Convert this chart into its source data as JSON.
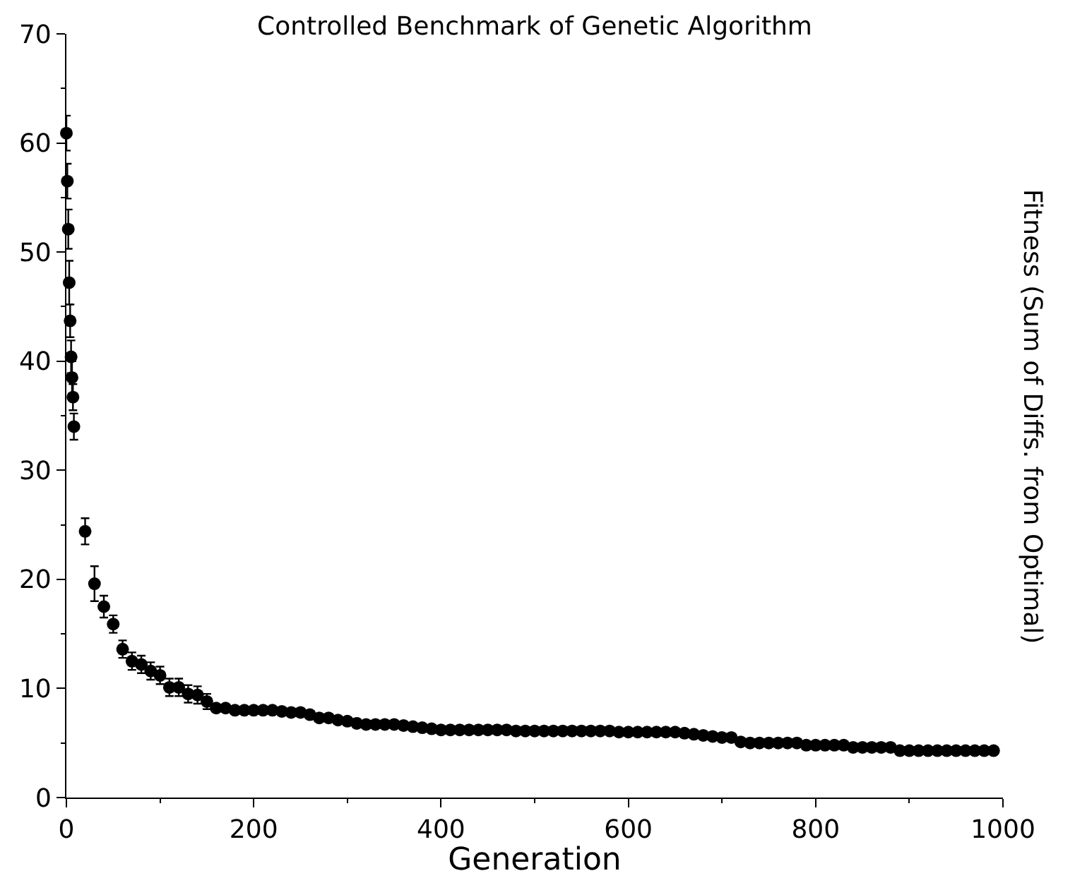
{
  "chart_data": {
    "type": "scatter",
    "title": "Controlled Benchmark of Genetic Algorithm",
    "xlabel": "Generation",
    "ylabel": "Fitness (Sum of Diffs. from Optimal)",
    "x": [
      0,
      1,
      2,
      3,
      4,
      5,
      6,
      7,
      8,
      20,
      30,
      40,
      50,
      60,
      70,
      80,
      90,
      100,
      110,
      120,
      130,
      140,
      150,
      160,
      170,
      180,
      190,
      200,
      210,
      220,
      230,
      240,
      250,
      260,
      270,
      280,
      290,
      300,
      310,
      320,
      330,
      340,
      350,
      360,
      370,
      380,
      390,
      400,
      410,
      420,
      430,
      440,
      450,
      460,
      470,
      480,
      490,
      500,
      510,
      520,
      530,
      540,
      550,
      560,
      570,
      580,
      590,
      600,
      610,
      620,
      630,
      640,
      650,
      660,
      670,
      680,
      690,
      700,
      710,
      720,
      730,
      740,
      750,
      760,
      770,
      780,
      790,
      800,
      810,
      820,
      830,
      840,
      850,
      860,
      870,
      880,
      890,
      900,
      910,
      920,
      930,
      940,
      950,
      960,
      970,
      980,
      990
    ],
    "series": [
      {
        "color": "#000000",
        "values": [
          60.9,
          56.5,
          52.1,
          47.2,
          43.7,
          40.4,
          38.5,
          36.7,
          34.0,
          24.4,
          19.6,
          17.5,
          15.9,
          13.6,
          12.5,
          12.2,
          11.6,
          11.2,
          10.1,
          10.1,
          9.5,
          9.4,
          8.8,
          8.2,
          8.2,
          8.0,
          8.0,
          8.0,
          8.0,
          8.0,
          7.9,
          7.8,
          7.8,
          7.6,
          7.3,
          7.3,
          7.1,
          7.0,
          6.8,
          6.7,
          6.7,
          6.7,
          6.7,
          6.6,
          6.5,
          6.4,
          6.3,
          6.2,
          6.2,
          6.2,
          6.2,
          6.2,
          6.2,
          6.2,
          6.2,
          6.1,
          6.1,
          6.1,
          6.1,
          6.1,
          6.1,
          6.1,
          6.1,
          6.1,
          6.1,
          6.1,
          6.0,
          6.0,
          6.0,
          6.0,
          6.0,
          6.0,
          6.0,
          5.9,
          5.8,
          5.7,
          5.6,
          5.5,
          5.5,
          5.1,
          5.0,
          5.0,
          5.0,
          5.0,
          5.0,
          5.0,
          4.8,
          4.8,
          4.8,
          4.8,
          4.8,
          4.6,
          4.6,
          4.6,
          4.6,
          4.6,
          4.3,
          4.3,
          4.3,
          4.3,
          4.3,
          4.3,
          4.3,
          4.3,
          4.3,
          4.3,
          4.3
        ],
        "errors": [
          1.6,
          1.6,
          1.8,
          2.0,
          1.5,
          1.5,
          1.5,
          1.2,
          1.2,
          1.2,
          1.6,
          1.0,
          0.8,
          0.8,
          0.8,
          0.8,
          0.8,
          0.8,
          0.8,
          0.8,
          0.8,
          0.8,
          0.7,
          null,
          null,
          null,
          null,
          null,
          null,
          null,
          null,
          null,
          null,
          null,
          null,
          null,
          null,
          null,
          null,
          null,
          null,
          null,
          null,
          null,
          null,
          null,
          null,
          null,
          null,
          null,
          null,
          null,
          null,
          null,
          null,
          null,
          null,
          null,
          null,
          null,
          null,
          null,
          null,
          null,
          null,
          null,
          null,
          null,
          null,
          null,
          null,
          null,
          null,
          null,
          null,
          null,
          null,
          null,
          null,
          null,
          null,
          null,
          null,
          null,
          null,
          null,
          null,
          null,
          null,
          null,
          null,
          null,
          null,
          null,
          null,
          null,
          null,
          null,
          null,
          null,
          null,
          null,
          null,
          null,
          null,
          null,
          null
        ]
      }
    ],
    "xlim": [
      0,
      1000
    ],
    "xticks": [
      0,
      200,
      400,
      600,
      800,
      1000
    ],
    "ylim": [
      0,
      70
    ],
    "yticks": [
      0,
      10,
      20,
      30,
      40,
      50,
      60,
      70
    ],
    "marker": "circle",
    "grid": false
  }
}
